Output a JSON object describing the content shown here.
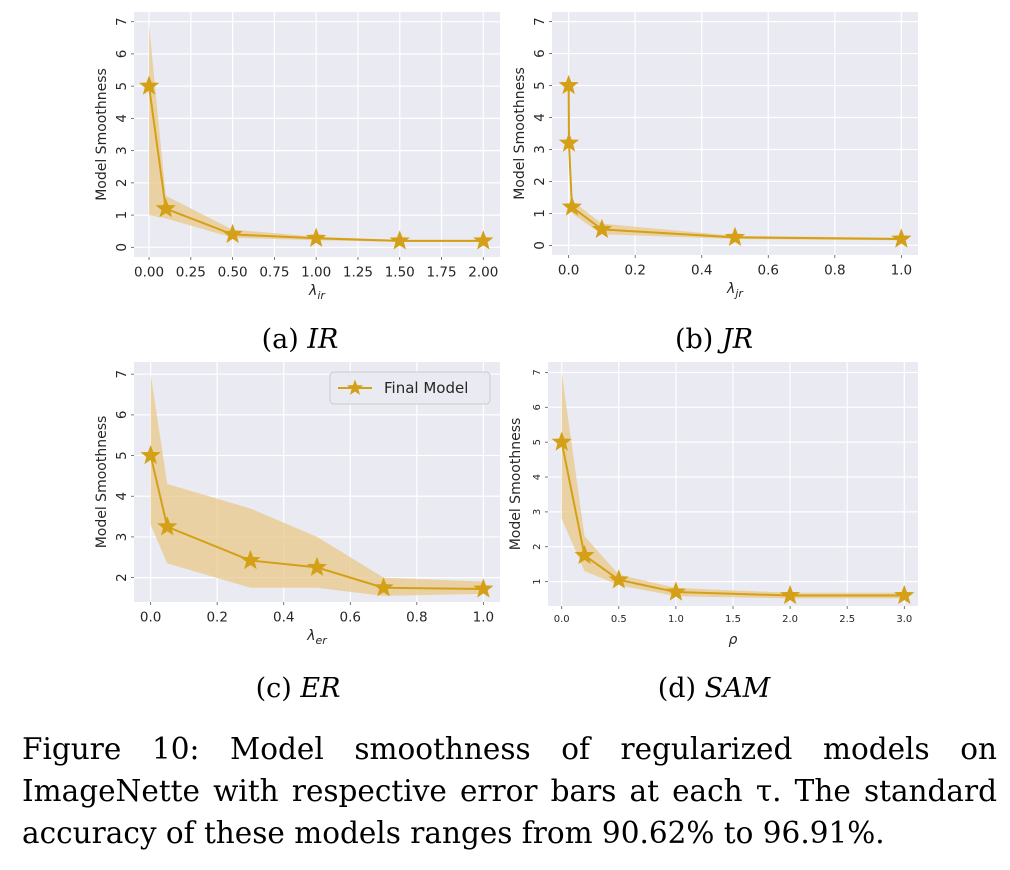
{
  "series_color": "#d4a017",
  "band_color": "#e8c888",
  "panel_bg": "#eaeaf2",
  "legend_label": "Final Model",
  "chart_data": [
    {
      "type": "line",
      "panel": "a",
      "subcaption_prefix": "(a) ",
      "subcaption_method": "IR",
      "ylabel": "Model Smoothness",
      "xlabel": "λir",
      "x": [
        0.0,
        0.1,
        0.5,
        1.0,
        1.5,
        2.0
      ],
      "y": [
        5.0,
        1.2,
        0.4,
        0.28,
        0.2,
        0.2
      ],
      "lower": [
        1.0,
        0.9,
        0.3,
        0.22,
        0.17,
        0.17
      ],
      "upper": [
        6.9,
        1.6,
        0.55,
        0.33,
        0.23,
        0.23
      ],
      "xlim": [
        -0.09,
        2.1
      ],
      "ylim": [
        -0.3,
        7.3
      ],
      "xticks": [
        0.0,
        0.25,
        0.5,
        0.75,
        1.0,
        1.25,
        1.5,
        1.75,
        2.0
      ],
      "xticklabels": [
        "0.00",
        "0.25",
        "0.50",
        "0.75",
        "1.00",
        "1.25",
        "1.50",
        "1.75",
        "2.00"
      ],
      "yticks": [
        0,
        1,
        2,
        3,
        4,
        5,
        6,
        7
      ],
      "yticklabels": [
        "0",
        "1",
        "2",
        "3",
        "4",
        "5",
        "6",
        "7"
      ],
      "legend": false
    },
    {
      "type": "line",
      "panel": "b",
      "subcaption_prefix": "(b) ",
      "subcaption_method": "JR",
      "ylabel": "Model Smoothness",
      "xlabel": "λjr",
      "x": [
        0.0,
        0.001,
        0.01,
        0.1,
        0.5,
        1.0
      ],
      "y": [
        5.0,
        3.2,
        1.2,
        0.5,
        0.25,
        0.2
      ],
      "lower": [
        5.0,
        3.0,
        1.0,
        0.35,
        0.2,
        0.16
      ],
      "upper": [
        5.0,
        3.4,
        1.4,
        0.68,
        0.3,
        0.24
      ],
      "xlim": [
        -0.05,
        1.05
      ],
      "ylim": [
        -0.3,
        7.3
      ],
      "xticks": [
        0.0,
        0.2,
        0.4,
        0.6,
        0.8,
        1.0
      ],
      "xticklabels": [
        "0.0",
        "0.2",
        "0.4",
        "0.6",
        "0.8",
        "1.0"
      ],
      "yticks": [
        0,
        1,
        2,
        3,
        4,
        5,
        6,
        7
      ],
      "yticklabels": [
        "0",
        "1",
        "2",
        "3",
        "4",
        "5",
        "6",
        "7"
      ],
      "legend": false
    },
    {
      "type": "line",
      "panel": "c",
      "subcaption_prefix": "(c) ",
      "subcaption_method": "ER",
      "ylabel": "Model Smoothness",
      "xlabel": "λer",
      "x": [
        0.0,
        0.05,
        0.3,
        0.5,
        0.7,
        1.0
      ],
      "y": [
        5.0,
        3.25,
        2.42,
        2.25,
        1.75,
        1.72
      ],
      "lower": [
        3.3,
        2.35,
        1.75,
        1.75,
        1.55,
        1.6
      ],
      "upper": [
        7.0,
        4.3,
        3.7,
        3.0,
        2.0,
        1.9
      ],
      "xlim": [
        -0.05,
        1.05
      ],
      "ylim": [
        1.4,
        7.3
      ],
      "xticks": [
        0.0,
        0.2,
        0.4,
        0.6,
        0.8,
        1.0
      ],
      "xticklabels": [
        "0.0",
        "0.2",
        "0.4",
        "0.6",
        "0.8",
        "1.0"
      ],
      "yticks": [
        2,
        3,
        4,
        5,
        6,
        7
      ],
      "yticklabels": [
        "2",
        "3",
        "4",
        "5",
        "6",
        "7"
      ],
      "legend": true,
      "legend_position": "upper right"
    },
    {
      "type": "line",
      "panel": "d",
      "subcaption_prefix": "(d) ",
      "subcaption_method": "SAM",
      "ylabel": "Model Smoothness",
      "xlabel": "ρ",
      "x": [
        0.0,
        0.2,
        0.5,
        1.0,
        2.0,
        3.0
      ],
      "y": [
        5.0,
        1.75,
        1.05,
        0.7,
        0.6,
        0.6
      ],
      "lower": [
        2.8,
        1.3,
        0.9,
        0.58,
        0.52,
        0.52
      ],
      "upper": [
        7.0,
        2.3,
        1.2,
        0.82,
        0.68,
        0.68
      ],
      "xlim": [
        -0.12,
        3.12
      ],
      "ylim": [
        0.3,
        7.3
      ],
      "xticks": [
        0.0,
        0.5,
        1.0,
        1.5,
        2.0,
        2.5,
        3.0
      ],
      "xticklabels": [
        "0.0",
        "0.5",
        "1.0",
        "1.5",
        "2.0",
        "2.5",
        "3.0"
      ],
      "yticks": [
        1,
        2,
        3,
        4,
        5,
        6,
        7
      ],
      "yticklabels": [
        "1",
        "2",
        "3",
        "4",
        "5",
        "6",
        "7"
      ],
      "legend": false
    }
  ],
  "caption": "Figure 10: Model smoothness of regularized models on ImageNette with respective error bars at each τ. The standard accuracy of these models ranges from 90.62% to 96.91%."
}
